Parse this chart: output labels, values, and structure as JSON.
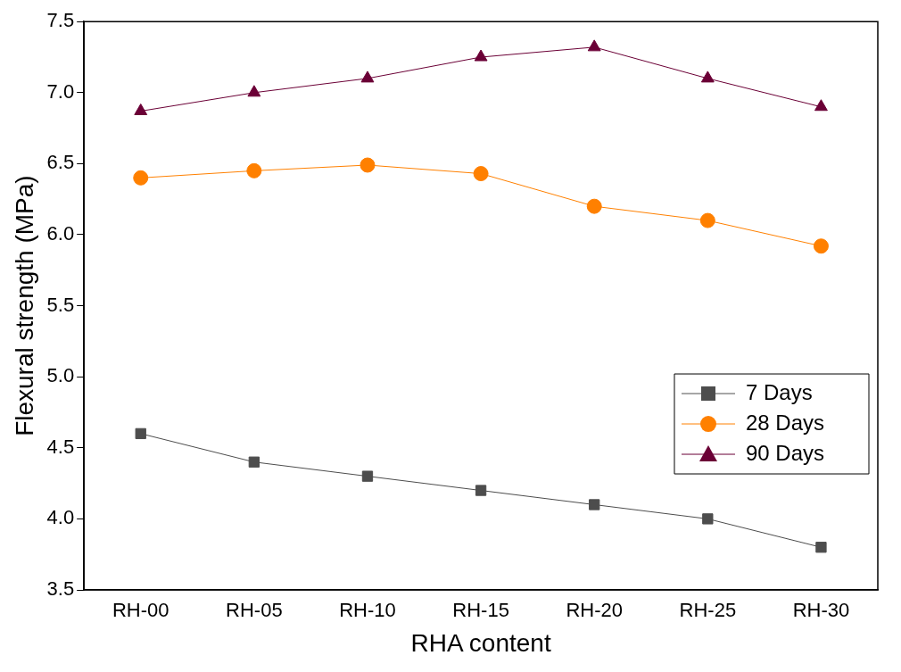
{
  "chart_data": {
    "type": "line",
    "xlabel": "RHA content",
    "ylabel": "Flexural strength (MPa)",
    "categories": [
      "RH-00",
      "RH-05",
      "RH-10",
      "RH-15",
      "RH-20",
      "RH-25",
      "RH-30"
    ],
    "ylim": [
      3.5,
      7.5
    ],
    "yticks": [
      3.5,
      {
        "value": 4,
        "label": "4.0"
      },
      4.5,
      {
        "value": 5,
        "label": "5.0"
      },
      5.5,
      {
        "value": 6,
        "label": "6.0"
      },
      6.5,
      {
        "value": 7,
        "label": "7.0"
      },
      7.5
    ],
    "grid": false,
    "legend": "right",
    "line_style": "solid",
    "series": [
      {
        "name": "7 Days",
        "color": "#4d4d4d",
        "marker": "square",
        "values": [
          4.6,
          4.4,
          4.3,
          4.2,
          4.1,
          4.0,
          3.8
        ]
      },
      {
        "name": "28 Days",
        "color": "#ff8000",
        "marker": "circle",
        "values": [
          6.4,
          6.45,
          6.49,
          6.43,
          6.2,
          6.1,
          5.92
        ]
      },
      {
        "name": "90 Days",
        "color": "#6b0036",
        "marker": "triangle",
        "values": [
          6.87,
          7.0,
          7.1,
          7.25,
          7.32,
          7.1,
          6.9
        ]
      }
    ]
  }
}
